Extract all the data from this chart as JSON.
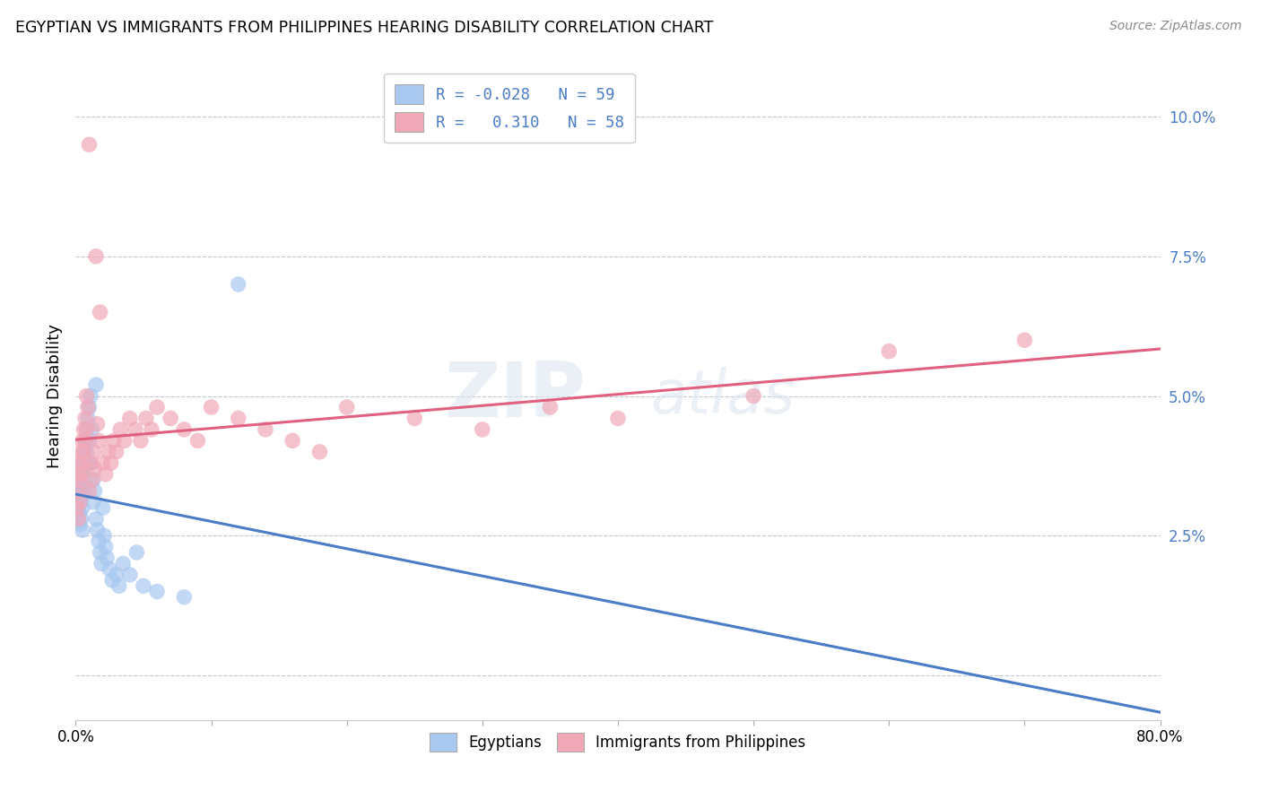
{
  "title": "EGYPTIAN VS IMMIGRANTS FROM PHILIPPINES HEARING DISABILITY CORRELATION CHART",
  "source": "Source: ZipAtlas.com",
  "ylabel": "Hearing Disability",
  "yticks": [
    0.0,
    0.025,
    0.05,
    0.075,
    0.1
  ],
  "ytick_labels": [
    "",
    "2.5%",
    "5.0%",
    "7.5%",
    "10.0%"
  ],
  "xmin": 0.0,
  "xmax": 0.8,
  "ymin": -0.008,
  "ymax": 0.108,
  "legend_label1": "Egyptians",
  "legend_label2": "Immigrants from Philippines",
  "color_blue": "#a8c8f0",
  "color_pink": "#f0a8b8",
  "color_blue_line": "#4a7cc7",
  "color_pink_line": "#e06080",
  "watermark_zip": "ZIP",
  "watermark_atlas": "atlas",
  "blue_scatter_x": [
    0.001,
    0.001,
    0.002,
    0.002,
    0.002,
    0.003,
    0.003,
    0.003,
    0.003,
    0.003,
    0.004,
    0.004,
    0.004,
    0.004,
    0.005,
    0.005,
    0.005,
    0.005,
    0.005,
    0.005,
    0.006,
    0.006,
    0.006,
    0.007,
    0.007,
    0.007,
    0.008,
    0.008,
    0.009,
    0.009,
    0.01,
    0.01,
    0.011,
    0.011,
    0.012,
    0.013,
    0.013,
    0.014,
    0.015,
    0.015,
    0.016,
    0.017,
    0.018,
    0.019,
    0.02,
    0.021,
    0.022,
    0.023,
    0.025,
    0.027,
    0.03,
    0.032,
    0.035,
    0.04,
    0.045,
    0.05,
    0.06,
    0.08,
    0.12
  ],
  "blue_scatter_y": [
    0.032,
    0.03,
    0.034,
    0.031,
    0.029,
    0.035,
    0.033,
    0.031,
    0.029,
    0.027,
    0.036,
    0.034,
    0.032,
    0.028,
    0.038,
    0.036,
    0.034,
    0.032,
    0.03,
    0.026,
    0.04,
    0.037,
    0.033,
    0.042,
    0.038,
    0.034,
    0.044,
    0.04,
    0.046,
    0.038,
    0.048,
    0.042,
    0.05,
    0.038,
    0.044,
    0.035,
    0.031,
    0.033,
    0.052,
    0.028,
    0.026,
    0.024,
    0.022,
    0.02,
    0.03,
    0.025,
    0.023,
    0.021,
    0.019,
    0.017,
    0.018,
    0.016,
    0.02,
    0.018,
    0.022,
    0.016,
    0.015,
    0.014,
    0.07
  ],
  "pink_scatter_x": [
    0.001,
    0.001,
    0.002,
    0.002,
    0.003,
    0.003,
    0.003,
    0.004,
    0.004,
    0.005,
    0.005,
    0.006,
    0.006,
    0.007,
    0.007,
    0.008,
    0.008,
    0.009,
    0.01,
    0.01,
    0.011,
    0.012,
    0.013,
    0.014,
    0.015,
    0.016,
    0.017,
    0.018,
    0.02,
    0.022,
    0.024,
    0.026,
    0.028,
    0.03,
    0.033,
    0.036,
    0.04,
    0.044,
    0.048,
    0.052,
    0.056,
    0.06,
    0.07,
    0.08,
    0.09,
    0.1,
    0.12,
    0.14,
    0.16,
    0.18,
    0.2,
    0.25,
    0.3,
    0.35,
    0.4,
    0.5,
    0.6,
    0.7
  ],
  "pink_scatter_y": [
    0.033,
    0.03,
    0.036,
    0.028,
    0.038,
    0.035,
    0.031,
    0.04,
    0.036,
    0.042,
    0.038,
    0.044,
    0.04,
    0.046,
    0.042,
    0.05,
    0.044,
    0.048,
    0.095,
    0.033,
    0.038,
    0.035,
    0.04,
    0.037,
    0.075,
    0.045,
    0.042,
    0.065,
    0.038,
    0.036,
    0.04,
    0.038,
    0.042,
    0.04,
    0.044,
    0.042,
    0.046,
    0.044,
    0.042,
    0.046,
    0.044,
    0.048,
    0.046,
    0.044,
    0.042,
    0.048,
    0.046,
    0.044,
    0.042,
    0.04,
    0.048,
    0.046,
    0.044,
    0.048,
    0.046,
    0.05,
    0.058,
    0.06
  ]
}
